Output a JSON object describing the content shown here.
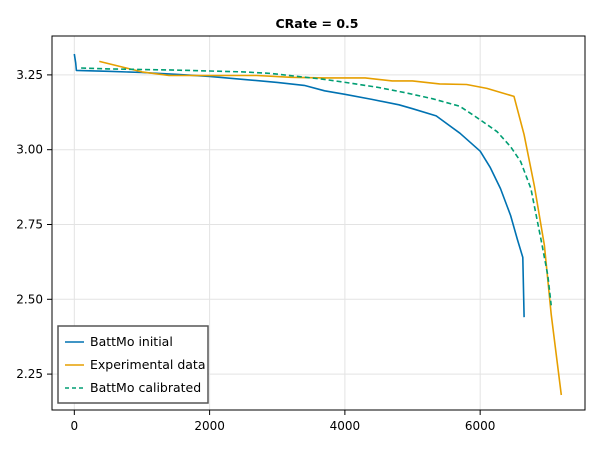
{
  "chart_data": {
    "type": "line",
    "title": "CRate = 0.5",
    "xlabel": "",
    "ylabel": "",
    "xlim": [
      -330,
      7550
    ],
    "ylim": [
      2.13,
      3.38
    ],
    "x_ticks": [
      0,
      2000,
      4000,
      6000
    ],
    "x_tick_labels": [
      "0",
      "2000",
      "4000",
      "6000"
    ],
    "y_ticks": [
      2.25,
      2.5,
      2.75,
      3.0,
      3.25
    ],
    "y_tick_labels": [
      "2.25",
      "2.50",
      "2.75",
      "3.00",
      "3.25"
    ],
    "grid": true,
    "legend_position": "bottom-left",
    "series": [
      {
        "name": "BattMo initial",
        "color": "#0072B2",
        "dash": "solid",
        "x": [
          0,
          20,
          30,
          500,
          1000,
          1500,
          2000,
          2500,
          3000,
          3400,
          3700,
          4000,
          4400,
          4800,
          5000,
          5350,
          5700,
          6000,
          6150,
          6300,
          6450,
          6550,
          6630,
          6650
        ],
        "y": [
          3.32,
          3.29,
          3.265,
          3.262,
          3.258,
          3.252,
          3.245,
          3.235,
          3.225,
          3.215,
          3.197,
          3.185,
          3.168,
          3.15,
          3.137,
          3.113,
          3.055,
          2.995,
          2.94,
          2.87,
          2.78,
          2.7,
          2.64,
          2.44
        ]
      },
      {
        "name": "Experimental data",
        "color": "#E69F00",
        "dash": "solid",
        "x": [
          370,
          1000,
          1400,
          2000,
          2700,
          3200,
          3700,
          4300,
          4700,
          5000,
          5400,
          5800,
          6100,
          6500,
          6650,
          6800,
          6950,
          7050,
          7200
        ],
        "y": [
          3.295,
          3.26,
          3.248,
          3.248,
          3.248,
          3.242,
          3.24,
          3.24,
          3.23,
          3.23,
          3.22,
          3.218,
          3.205,
          3.178,
          3.05,
          2.88,
          2.68,
          2.45,
          2.18
        ]
      },
      {
        "name": "BattMo calibrated",
        "color": "#009E73",
        "dash": "dashed",
        "x": [
          100,
          500,
          1000,
          1500,
          2000,
          2500,
          2900,
          3300,
          3700,
          4100,
          4500,
          4900,
          5300,
          5700,
          6000,
          6250,
          6450,
          6600,
          6750,
          6900,
          7000,
          7050
        ],
        "y": [
          3.273,
          3.27,
          3.268,
          3.266,
          3.263,
          3.26,
          3.255,
          3.245,
          3.235,
          3.222,
          3.208,
          3.19,
          3.17,
          3.145,
          3.1,
          3.06,
          3.01,
          2.96,
          2.87,
          2.7,
          2.58,
          2.48
        ]
      }
    ]
  }
}
